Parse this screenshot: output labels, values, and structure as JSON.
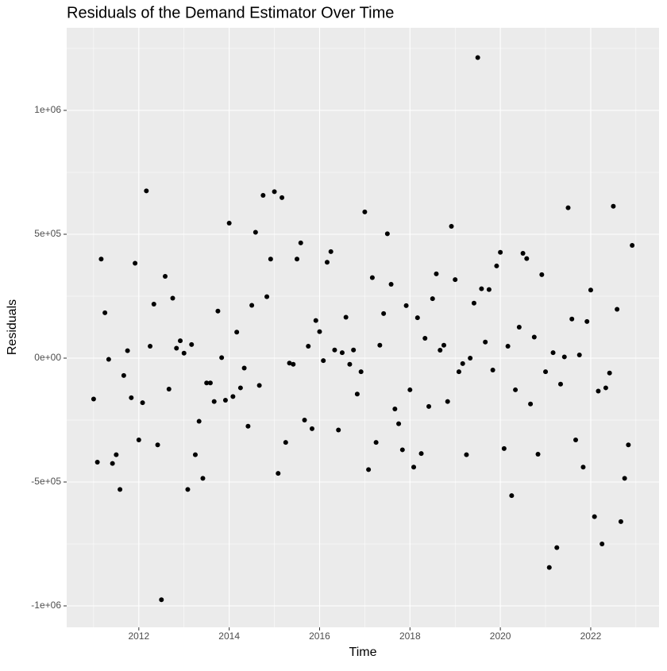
{
  "chart_data": {
    "type": "scatter",
    "title": "Residuals of the Demand Estimator Over Time",
    "x_label": "Time",
    "y_label": "Residuals",
    "color": "#000000",
    "grid": true,
    "xlim": [
      2010.404,
      2023.512
    ],
    "ylim": [
      -1086538,
      1333333
    ],
    "xticks": [
      2012,
      2014,
      2016,
      2018,
      2020,
      2022
    ],
    "yticks": [
      {
        "value": -1000000,
        "label": "-1e+06"
      },
      {
        "value": -500000,
        "label": "-5e+05"
      },
      {
        "value": 0,
        "label": "0e+00"
      },
      {
        "value": 500000,
        "label": "5e+05"
      },
      {
        "value": 1000000,
        "label": "1e+06"
      }
    ],
    "x": [
      2011.0,
      2011.083,
      2011.167,
      2011.25,
      2011.333,
      2011.417,
      2011.5,
      2011.583,
      2011.667,
      2011.75,
      2011.833,
      2011.917,
      2012.0,
      2012.083,
      2012.167,
      2012.25,
      2012.333,
      2012.417,
      2012.5,
      2012.583,
      2012.667,
      2012.75,
      2012.833,
      2012.917,
      2013.0,
      2013.083,
      2013.167,
      2013.25,
      2013.333,
      2013.417,
      2013.5,
      2013.583,
      2013.667,
      2013.75,
      2013.833,
      2013.917,
      2014.0,
      2014.083,
      2014.167,
      2014.25,
      2014.333,
      2014.417,
      2014.5,
      2014.583,
      2014.667,
      2014.75,
      2014.833,
      2014.917,
      2015.0,
      2015.083,
      2015.167,
      2015.25,
      2015.333,
      2015.417,
      2015.5,
      2015.583,
      2015.667,
      2015.75,
      2015.833,
      2015.917,
      2016.0,
      2016.083,
      2016.167,
      2016.25,
      2016.333,
      2016.417,
      2016.5,
      2016.583,
      2016.667,
      2016.75,
      2016.833,
      2016.917,
      2017.0,
      2017.083,
      2017.167,
      2017.25,
      2017.333,
      2017.417,
      2017.5,
      2017.583,
      2017.667,
      2017.75,
      2017.833,
      2017.917,
      2018.0,
      2018.083,
      2018.167,
      2018.25,
      2018.333,
      2018.417,
      2018.5,
      2018.583,
      2018.667,
      2018.75,
      2018.833,
      2018.917,
      2019.0,
      2019.083,
      2019.167,
      2019.25,
      2019.333,
      2019.417,
      2019.5,
      2019.583,
      2019.667,
      2019.75,
      2019.833,
      2019.917,
      2020.0,
      2020.083,
      2020.167,
      2020.25,
      2020.333,
      2020.417,
      2020.5,
      2020.583,
      2020.667,
      2020.75,
      2020.833,
      2020.917,
      2021.0,
      2021.083,
      2021.167,
      2021.25,
      2021.333,
      2021.417,
      2021.5,
      2021.583,
      2021.667,
      2021.75,
      2021.833,
      2021.917,
      2022.0,
      2022.083,
      2022.167,
      2022.25,
      2022.333,
      2022.417,
      2022.5,
      2022.583,
      2022.667,
      2022.75,
      2022.833,
      2022.917
    ],
    "values": [
      -165000,
      -420000,
      400000,
      183000,
      -5000,
      -425000,
      -390000,
      -530000,
      -70000,
      30000,
      -160000,
      383000,
      -330000,
      -180000,
      675000,
      48000,
      218000,
      -350000,
      -975000,
      330000,
      -125000,
      242000,
      40000,
      70000,
      20000,
      -530000,
      55000,
      -390000,
      -255000,
      -485000,
      -100000,
      -100000,
      -175000,
      190000,
      2000,
      -170000,
      545000,
      -155000,
      105000,
      -120000,
      -40000,
      -275000,
      213000,
      508000,
      -110000,
      657000,
      248000,
      400000,
      672000,
      -465000,
      648000,
      -340000,
      -20000,
      -25000,
      400000,
      465000,
      -250000,
      48000,
      -285000,
      152000,
      107000,
      -10000,
      387000,
      430000,
      33000,
      -290000,
      22000,
      165000,
      -25000,
      33000,
      -145000,
      -55000,
      590000,
      -450000,
      325000,
      -340000,
      52000,
      180000,
      502000,
      298000,
      -205000,
      -265000,
      -370000,
      212000,
      -128000,
      -440000,
      163000,
      -385000,
      80000,
      -195000,
      240000,
      340000,
      32000,
      52000,
      -175000,
      532000,
      317000,
      -55000,
      -22000,
      -390000,
      0,
      222000,
      1213000,
      280000,
      65000,
      277000,
      -48000,
      372000,
      427000,
      -365000,
      48000,
      -555000,
      -128000,
      125000,
      423000,
      402000,
      -185000,
      85000,
      -388000,
      337000,
      -55000,
      -845000,
      22000,
      -765000,
      -105000,
      5000,
      607000,
      158000,
      -330000,
      13000,
      -440000,
      148000,
      275000,
      -640000,
      -133000,
      -750000,
      -120000,
      -60000,
      613000,
      197000,
      -660000,
      -485000,
      -350000,
      455000
    ]
  }
}
